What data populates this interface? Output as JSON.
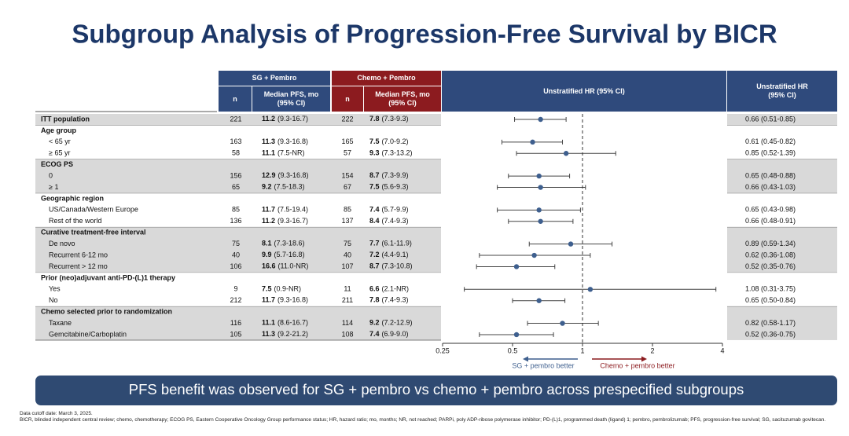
{
  "chart_data": {
    "type": "forest",
    "title": "Subgroup Analysis of Progression-Free Survival by BICR",
    "sg_header": "SG + Pembro",
    "chemo_header": "Chemo + Pembro",
    "n_header": "n",
    "median_header": "Median PFS, mo (95% CI)",
    "plot_header": "Unstratified HR (95% CI)",
    "hr_header": "Unstratified HR (95% CI)",
    "sg_color": "#2f4a7c",
    "chemo_color": "#8c1b1f",
    "marker_color": "#3e5f8e",
    "overall": {
      "label": "ITT population",
      "sg_n": 221,
      "sg_median": 11.2,
      "sg_ci": "(9.3-16.7)",
      "chemo_n": 222,
      "chemo_median": 7.8,
      "chemo_ci": "(7.3-9.3)",
      "hr": 0.66,
      "hr_lo": 0.51,
      "hr_hi": 0.85,
      "hr_label": "0.66 (0.51-0.85)"
    },
    "groups": [
      {
        "name": "Age group",
        "rows": [
          {
            "label": "< 65 yr",
            "sg_n": 163,
            "sg_median": 11.3,
            "sg_ci": "(9.3-16.8)",
            "chemo_n": 165,
            "chemo_median": 7.5,
            "chemo_ci": "(7.0-9.2)",
            "hr": 0.61,
            "hr_lo": 0.45,
            "hr_hi": 0.82,
            "hr_label": "0.61 (0.45-0.82)"
          },
          {
            "label": "≥ 65 yr",
            "sg_n": 58,
            "sg_median": 11.1,
            "sg_ci": "(7.5-NR)",
            "chemo_n": 57,
            "chemo_median": 9.3,
            "chemo_ci": "(7.3-13.2)",
            "hr": 0.85,
            "hr_lo": 0.52,
            "hr_hi": 1.39,
            "hr_label": "0.85 (0.52-1.39)"
          }
        ]
      },
      {
        "name": "ECOG PS",
        "rows": [
          {
            "label": "0",
            "sg_n": 156,
            "sg_median": 12.9,
            "sg_ci": "(9.3-16.8)",
            "chemo_n": 154,
            "chemo_median": 8.7,
            "chemo_ci": "(7.3-9.9)",
            "hr": 0.65,
            "hr_lo": 0.48,
            "hr_hi": 0.88,
            "hr_label": "0.65 (0.48-0.88)"
          },
          {
            "label": "≥ 1",
            "sg_n": 65,
            "sg_median": 9.2,
            "sg_ci": "(7.5-18.3)",
            "chemo_n": 67,
            "chemo_median": 7.5,
            "chemo_ci": "(5.6-9.3)",
            "hr": 0.66,
            "hr_lo": 0.43,
            "hr_hi": 1.03,
            "hr_label": "0.66 (0.43-1.03)"
          }
        ]
      },
      {
        "name": "Geographic region",
        "rows": [
          {
            "label": "US/Canada/Western Europe",
            "sg_n": 85,
            "sg_median": 11.7,
            "sg_ci": "(7.5-19.4)",
            "chemo_n": 85,
            "chemo_median": 7.4,
            "chemo_ci": "(5.7-9.9)",
            "hr": 0.65,
            "hr_lo": 0.43,
            "hr_hi": 0.98,
            "hr_label": "0.65 (0.43-0.98)"
          },
          {
            "label": "Rest of the world",
            "sg_n": 136,
            "sg_median": 11.2,
            "sg_ci": "(9.3-16.7)",
            "chemo_n": 137,
            "chemo_median": 8.4,
            "chemo_ci": "(7.4-9.3)",
            "hr": 0.66,
            "hr_lo": 0.48,
            "hr_hi": 0.91,
            "hr_label": "0.66 (0.48-0.91)"
          }
        ]
      },
      {
        "name": "Curative treatment-free interval",
        "rows": [
          {
            "label": "De novo",
            "sg_n": 75,
            "sg_median": 8.1,
            "sg_ci": "(7.3-18.6)",
            "chemo_n": 75,
            "chemo_median": 7.7,
            "chemo_ci": "(6.1-11.9)",
            "hr": 0.89,
            "hr_lo": 0.59,
            "hr_hi": 1.34,
            "hr_label": "0.89 (0.59-1.34)"
          },
          {
            "label": "Recurrent 6-12 mo",
            "sg_n": 40,
            "sg_median": 9.9,
            "sg_ci": "(5.7-16.8)",
            "chemo_n": 40,
            "chemo_median": 7.2,
            "chemo_ci": "(4.4-9.1)",
            "hr": 0.62,
            "hr_lo": 0.36,
            "hr_hi": 1.08,
            "hr_label": "0.62 (0.36-1.08)"
          },
          {
            "label": "Recurrent > 12 mo",
            "sg_n": 106,
            "sg_median": 16.6,
            "sg_ci": "(11.0-NR)",
            "chemo_n": 107,
            "chemo_median": 8.7,
            "chemo_ci": "(7.3-10.8)",
            "hr": 0.52,
            "hr_lo": 0.35,
            "hr_hi": 0.76,
            "hr_label": "0.52 (0.35-0.76)"
          }
        ]
      },
      {
        "name": "Prior (neo)adjuvant anti-PD-(L)1 therapy",
        "rows": [
          {
            "label": "Yes",
            "sg_n": 9,
            "sg_median": 7.5,
            "sg_ci": "(0.9-NR)",
            "chemo_n": 11,
            "chemo_median": 6.6,
            "chemo_ci": "(2.1-NR)",
            "hr": 1.08,
            "hr_lo": 0.31,
            "hr_hi": 3.75,
            "hr_label": "1.08 (0.31-3.75)"
          },
          {
            "label": "No",
            "sg_n": 212,
            "sg_median": 11.7,
            "sg_ci": "(9.3-16.8)",
            "chemo_n": 211,
            "chemo_median": 7.8,
            "chemo_ci": "(7.4-9.3)",
            "hr": 0.65,
            "hr_lo": 0.5,
            "hr_hi": 0.84,
            "hr_label": "0.65 (0.50-0.84)"
          }
        ]
      },
      {
        "name": "Chemo selected prior to randomization",
        "rows": [
          {
            "label": "Taxane",
            "sg_n": 116,
            "sg_median": 11.1,
            "sg_ci": "(8.6-16.7)",
            "chemo_n": 114,
            "chemo_median": 9.2,
            "chemo_ci": "(7.2-12.9)",
            "hr": 0.82,
            "hr_lo": 0.58,
            "hr_hi": 1.17,
            "hr_label": "0.82 (0.58-1.17)"
          },
          {
            "label": "Gemcitabine/Carboplatin",
            "sg_n": 105,
            "sg_median": 11.3,
            "sg_ci": "(9.2-21.2)",
            "chemo_n": 108,
            "chemo_median": 7.4,
            "chemo_ci": "(6.9-9.0)",
            "hr": 0.52,
            "hr_lo": 0.36,
            "hr_hi": 0.75,
            "hr_label": "0.52 (0.36-0.75)"
          }
        ]
      }
    ],
    "xlim": [
      0.25,
      4
    ],
    "xticks": [
      0.25,
      0.5,
      1,
      2,
      4
    ],
    "log_scale": true,
    "reference": 1,
    "left_label": "SG + pembro better",
    "right_label": "Chemo + pembro better",
    "banner": "PFS benefit was observed for SG + pembro vs chemo + pembro across prespecified subgroups",
    "footnotes": [
      "Data cutoff date: March 3, 2025.",
      "BICR, blinded independent central review; chemo, chemotherapy; ECOG PS, Eastern Cooperative Oncology Group performance status; HR, hazard ratio; mo, months; NR, not reached; PARPi, poly ADP-ribose polymerase inhibitor; PD-(L)1, programmed death (ligand) 1; pembro, pembrolizumab; PFS, progression-free survival; SG, sacituzumab govitecan."
    ]
  }
}
